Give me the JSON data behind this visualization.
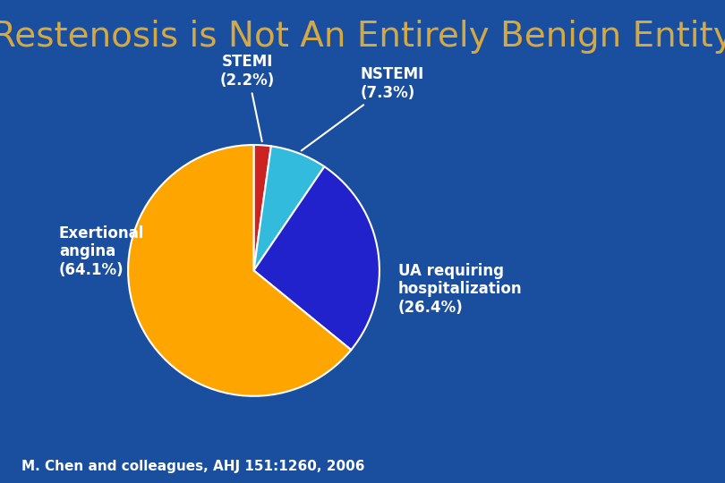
{
  "title": "Restenosis is Not An Entirely Benign Entity",
  "title_color": "#D4A843",
  "title_fontsize": 28,
  "background_color": "#1A4FA0",
  "slices": [
    2.2,
    7.3,
    26.4,
    64.1
  ],
  "slice_colors": [
    "#CC2222",
    "#33BBDD",
    "#2222CC",
    "#FFA500"
  ],
  "footnote": "M. Chen and colleagues, AHJ 151:1260, 2006",
  "footnote_color": "white",
  "footnote_fontsize": 11
}
